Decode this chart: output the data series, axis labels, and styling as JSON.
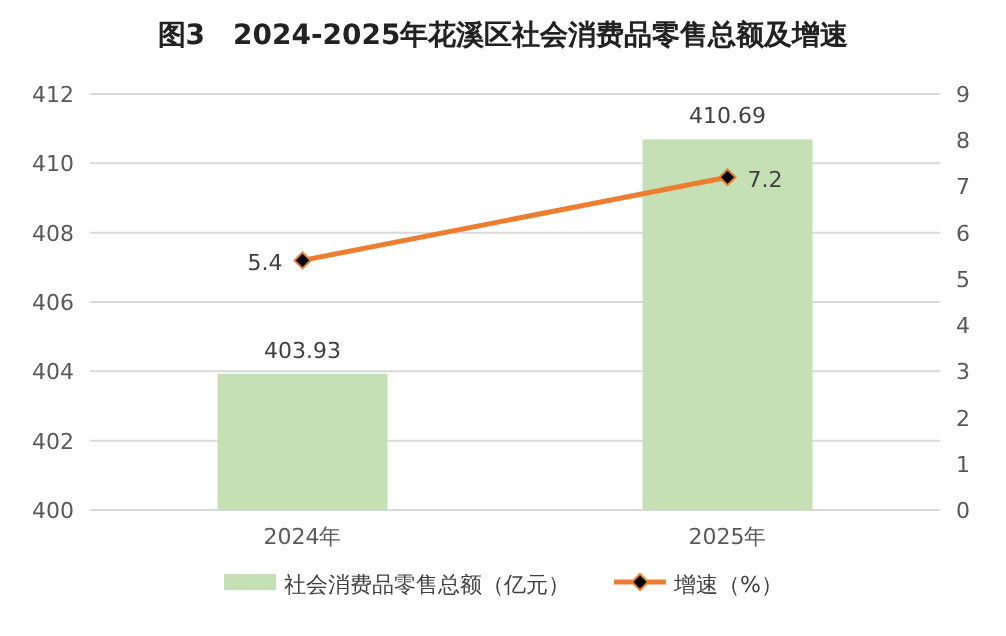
{
  "chart_data": {
    "type": "bar",
    "title": "图3　2024-2025年花溪区社会消费品零售总额及增速",
    "categories": [
      "2024年",
      "2025年"
    ],
    "series": [
      {
        "name": "社会消费品零售总额（亿元）",
        "color": "#c5e0b4",
        "values": [
          403.93,
          410.69
        ]
      },
      {
        "name": "增速（%）",
        "type": "line",
        "axis": "y2",
        "color": "#ed7d31",
        "values": [
          5.4,
          7.2
        ],
        "marker": "diamond"
      }
    ],
    "data_labels": true,
    "ylim": [
      400,
      412
    ],
    "yticks": [
      400,
      402,
      404,
      406,
      408,
      410,
      412
    ],
    "y2lim": [
      0,
      9
    ],
    "y2ticks": [
      0,
      1,
      2,
      3,
      4,
      5,
      6,
      7,
      8,
      9
    ],
    "grid": "y",
    "legend": "bottom"
  }
}
